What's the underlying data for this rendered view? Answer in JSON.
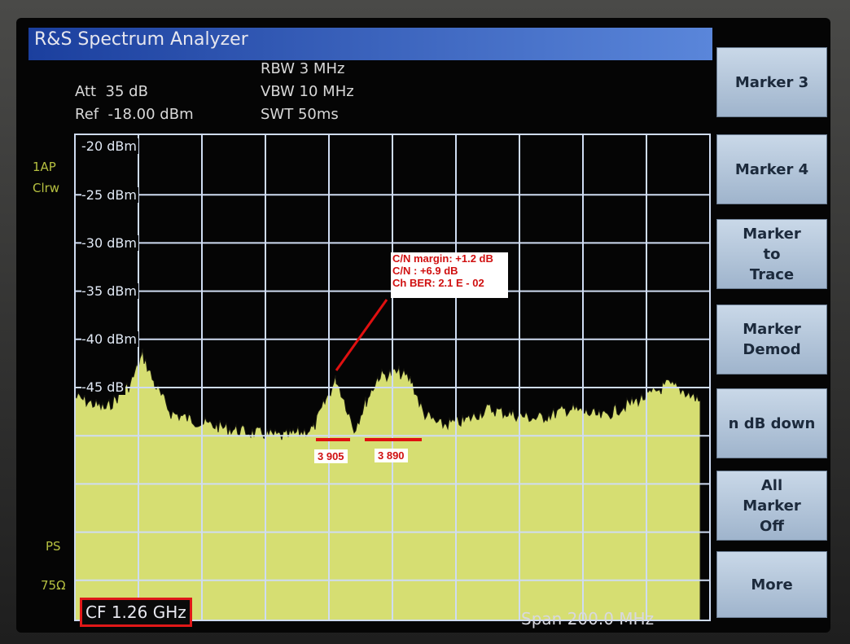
{
  "title": "R&S Spectrum Analyzer",
  "settings": {
    "att": "Att  35 dB",
    "ref": "Ref  -18.00 dBm",
    "rbw": "RBW 3 MHz",
    "vbw": "VBW 10 MHz",
    "swt": "SWT 50ms"
  },
  "trace_info": [
    "1AP",
    "Clrw"
  ],
  "side_labels": [
    "PS",
    "75Ω"
  ],
  "y_labels": [
    "-20 dBm",
    "-25 dBm",
    "-30 dBm",
    "-35 dBm",
    "-40 dBm",
    "-45 dB"
  ],
  "annotation": [
    "C/N margin: +1.2 dB",
    "C/N : +6.9 dB",
    "Ch BER: 2.1 E - 02"
  ],
  "markers": [
    "3 905",
    "3 890"
  ],
  "center_freq": "CF 1.26 GHz",
  "span": "Span 200.0 MHz",
  "softkeys": [
    [
      "Marker 3"
    ],
    [
      "Marker 4"
    ],
    [
      "Marker",
      "to",
      "Trace"
    ],
    [
      "Marker",
      "Demod"
    ],
    [
      "n dB down"
    ],
    [
      "All",
      "Marker",
      "Off"
    ],
    [
      "More"
    ]
  ]
}
